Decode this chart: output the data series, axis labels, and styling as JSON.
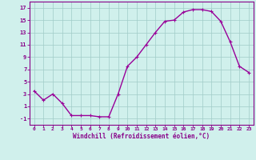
{
  "x": [
    0,
    1,
    2,
    3,
    4,
    5,
    6,
    7,
    8,
    9,
    10,
    11,
    12,
    13,
    14,
    15,
    16,
    17,
    18,
    19,
    20,
    21,
    22,
    23
  ],
  "y": [
    3.5,
    2.0,
    3.0,
    1.5,
    -0.5,
    -0.5,
    -0.5,
    -0.7,
    -0.7,
    3.0,
    7.5,
    9.0,
    11.0,
    13.0,
    14.8,
    15.0,
    16.3,
    16.7,
    16.7,
    16.4,
    14.8,
    11.5,
    7.5,
    6.5
  ],
  "line_color": "#990099",
  "marker": "+",
  "bg_color": "#d0f0ec",
  "grid_color": "#a0ccc8",
  "xlabel": "Windchill (Refroidissement éolien,°C)",
  "xlabel_color": "#880088",
  "xlim": [
    -0.5,
    23.5
  ],
  "ylim": [
    -2,
    18
  ],
  "yticks": [
    -1,
    1,
    3,
    5,
    7,
    9,
    11,
    13,
    15,
    17
  ],
  "xticks": [
    0,
    1,
    2,
    3,
    4,
    5,
    6,
    7,
    8,
    9,
    10,
    11,
    12,
    13,
    14,
    15,
    16,
    17,
    18,
    19,
    20,
    21,
    22,
    23
  ],
  "tick_color": "#880088",
  "spine_color": "#880088",
  "linewidth": 1.0,
  "markersize": 3.5,
  "markeredgewidth": 0.8
}
